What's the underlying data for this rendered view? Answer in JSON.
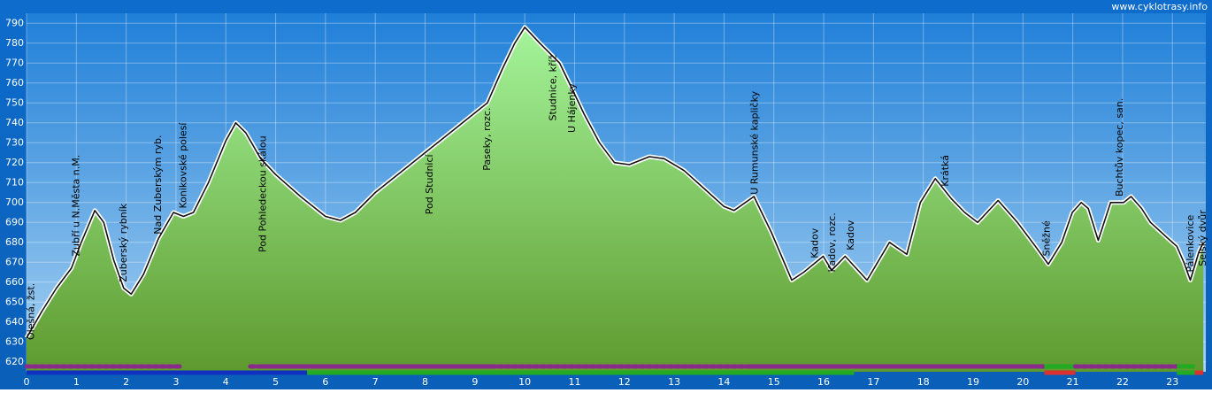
{
  "chart_data": {
    "type": "area",
    "watermark": "www.cyklotrasy.info",
    "x": [
      0,
      0.3,
      0.6,
      0.9,
      1.1,
      1.37,
      1.55,
      1.75,
      1.95,
      2.1,
      2.35,
      2.65,
      2.95,
      3.15,
      3.35,
      3.65,
      4.0,
      4.2,
      4.4,
      4.7,
      5.0,
      5.5,
      6.0,
      6.3,
      6.6,
      7.0,
      7.5,
      8.0,
      8.5,
      9.0,
      9.25,
      9.55,
      9.8,
      10.0,
      10.3,
      10.7,
      10.95,
      11.2,
      11.5,
      11.8,
      12.1,
      12.5,
      12.8,
      13.2,
      13.6,
      14.0,
      14.2,
      14.6,
      14.95,
      15.36,
      15.6,
      15.99,
      16.16,
      16.43,
      16.87,
      17.32,
      17.67,
      17.94,
      18.24,
      18.56,
      18.83,
      19.09,
      19.5,
      19.89,
      20.25,
      20.51,
      20.78,
      20.99,
      21.17,
      21.31,
      21.51,
      21.76,
      22.02,
      22.17,
      22.38,
      22.56,
      22.91,
      23.09,
      23.23,
      23.36,
      23.53,
      23.62
    ],
    "values": [
      632,
      645,
      657,
      667,
      680,
      696,
      690,
      671,
      657,
      654,
      664,
      682,
      695,
      693,
      695,
      710,
      731,
      740,
      735,
      722,
      714,
      703,
      693,
      691,
      695,
      705,
      715,
      725,
      735,
      745,
      750,
      767,
      780,
      788,
      780,
      770,
      757,
      744,
      730,
      720,
      719,
      723,
      722,
      716,
      707,
      698,
      696,
      703,
      685,
      661,
      665,
      673,
      666,
      673,
      661,
      680,
      674,
      700,
      712,
      702,
      695,
      690,
      701,
      690,
      678,
      669,
      680,
      695,
      700,
      697,
      681,
      700,
      700,
      703,
      697,
      690,
      682,
      678,
      670,
      661,
      675,
      680
    ],
    "annotations": [
      {
        "x": 0.1,
        "y": 631,
        "label": "Olešná, žst."
      },
      {
        "x": 1.0,
        "y": 673,
        "label": "Zubří u N.Města n.M."
      },
      {
        "x": 1.95,
        "y": 660,
        "label": "Zuberský rybník"
      },
      {
        "x": 2.65,
        "y": 684,
        "label": "Nad Zuberským ryb."
      },
      {
        "x": 3.15,
        "y": 697,
        "label": "Konikovské polesí"
      },
      {
        "x": 4.75,
        "y": 675,
        "label": "Pod Pohledeckou skálou"
      },
      {
        "x": 8.1,
        "y": 694,
        "label": "Pod Studnicí"
      },
      {
        "x": 9.25,
        "y": 716,
        "label": "Paseky, rozc."
      },
      {
        "x": 10.57,
        "y": 741,
        "label": "Studnice, kříž"
      },
      {
        "x": 10.96,
        "y": 735,
        "label": "U Hájenky"
      },
      {
        "x": 14.62,
        "y": 704,
        "label": "U Rumunské kapličky"
      },
      {
        "x": 15.83,
        "y": 672,
        "label": "Kadov"
      },
      {
        "x": 16.18,
        "y": 665,
        "label": "Kadov, rozc."
      },
      {
        "x": 16.55,
        "y": 676,
        "label": "Kadov"
      },
      {
        "x": 18.45,
        "y": 708,
        "label": "Krátká"
      },
      {
        "x": 20.48,
        "y": 673,
        "label": "Sněžné"
      },
      {
        "x": 21.95,
        "y": 703,
        "label": "Buchtův kopec, san."
      },
      {
        "x": 23.37,
        "y": 665,
        "label": "Pálenkovice"
      },
      {
        "x": 23.62,
        "y": 668,
        "label": "Selský dvůr"
      }
    ],
    "bands": [
      {
        "from": 0,
        "to": 3.11,
        "row": 1,
        "color": "#8a2a8a",
        "dashed": true
      },
      {
        "from": 4.49,
        "to": 4.67,
        "row": 1,
        "color": "#8a2a8a",
        "dashed": true
      },
      {
        "from": 4.67,
        "to": 9.33,
        "row": 1,
        "color": "#8a2a8a",
        "dashed": false
      },
      {
        "from": 9.33,
        "to": 14.48,
        "row": 1,
        "color": "#8a2a8a",
        "dashed": true
      },
      {
        "from": 14.48,
        "to": 20.43,
        "row": 1,
        "color": "#8a2a8a",
        "dashed": false
      },
      {
        "from": 20.43,
        "to": 21.05,
        "row": 1,
        "color": "#22aa22",
        "dashed": false
      },
      {
        "from": 21.05,
        "to": 23.09,
        "row": 1,
        "color": "#8a2a8a",
        "dashed": true
      },
      {
        "from": 23.09,
        "to": 23.45,
        "row": 1,
        "color": "#22aa22",
        "dashed": false
      },
      {
        "from": 0,
        "to": 5.63,
        "row": 2,
        "color": "#1030c0",
        "dashed": false
      },
      {
        "from": 5.63,
        "to": 16.61,
        "row": 2,
        "color": "#22aa22",
        "dashed": false
      },
      {
        "from": 20.43,
        "to": 21.05,
        "row": 2,
        "color": "#dd3030",
        "dashed": false
      },
      {
        "from": 23.09,
        "to": 23.45,
        "row": 2,
        "color": "#22aa22",
        "dashed": false
      },
      {
        "from": 23.45,
        "to": 23.62,
        "row": 2,
        "color": "#dd3030",
        "dashed": false
      }
    ],
    "xlim": [
      0,
      23.67
    ],
    "ylim": [
      615,
      795
    ],
    "xticks": [
      0,
      1,
      2,
      3,
      4,
      5,
      6,
      7,
      8,
      9,
      10,
      11,
      12,
      13,
      14,
      15,
      16,
      17,
      18,
      19,
      20,
      21,
      22,
      23
    ],
    "yticks": [
      620,
      630,
      640,
      650,
      660,
      670,
      680,
      690,
      700,
      710,
      720,
      730,
      740,
      750,
      760,
      770,
      780,
      790
    ],
    "grid": true
  }
}
